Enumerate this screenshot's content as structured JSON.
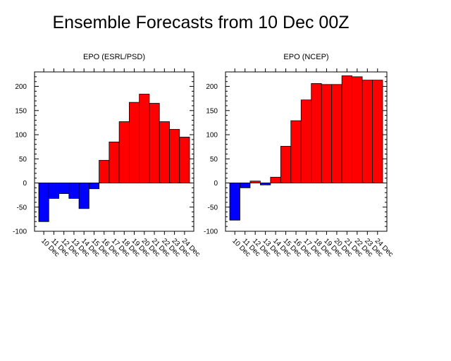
{
  "title": "Ensemble Forecasts from 10 Dec 00Z",
  "chart_data": [
    {
      "type": "bar",
      "title": "EPO (ESRL/PSD)",
      "categories": [
        "10 Dec",
        "11 Dec",
        "12 Dec",
        "13 Dec",
        "14 Dec",
        "15 Dec",
        "16 Dec",
        "17 Dec",
        "18 Dec",
        "19 Dec",
        "20 Dec",
        "21 Dec",
        "22 Dec",
        "23 Dec",
        "24 Dec"
      ],
      "values": [
        -80,
        -32,
        -22,
        -32,
        -53,
        -12,
        47,
        85,
        127,
        167,
        184,
        165,
        127,
        111,
        95
      ],
      "ylim": [
        -100,
        230
      ],
      "yticks": [
        -100,
        -50,
        0,
        50,
        100,
        150,
        200
      ],
      "positive_color": "#ff0000",
      "negative_color": "#0000ff"
    },
    {
      "type": "bar",
      "title": "EPO (NCEP)",
      "categories": [
        "10 Dec",
        "11 Dec",
        "12 Dec",
        "13 Dec",
        "14 Dec",
        "15 Dec",
        "16 Dec",
        "17 Dec",
        "18 Dec",
        "19 Dec",
        "20 Dec",
        "21 Dec",
        "22 Dec",
        "23 Dec",
        "24 Dec"
      ],
      "values": [
        -77,
        -10,
        4,
        -4,
        12,
        76,
        129,
        172,
        206,
        204,
        204,
        222,
        220,
        213,
        213
      ],
      "ylim": [
        -100,
        230
      ],
      "yticks": [
        -100,
        -50,
        0,
        50,
        100,
        150,
        200
      ],
      "positive_color": "#ff0000",
      "negative_color": "#0000ff"
    }
  ]
}
